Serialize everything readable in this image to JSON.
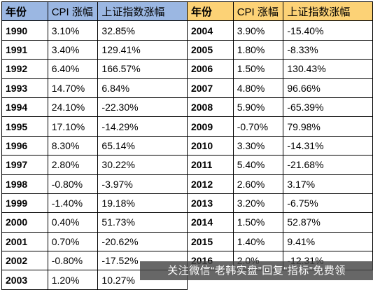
{
  "headers": {
    "left": [
      "年份",
      "CPI 涨幅",
      "上证指数涨幅"
    ],
    "right": [
      "年份",
      "CPI 涨幅",
      "上证指数涨幅"
    ]
  },
  "left_rows": [
    [
      "1990",
      "3.10%",
      "32.85%"
    ],
    [
      "1991",
      "3.40%",
      "129.41%"
    ],
    [
      "1992",
      "6.40%",
      "166.57%"
    ],
    [
      "1993",
      "14.70%",
      "6.84%"
    ],
    [
      "1994",
      "24.10%",
      "-22.30%"
    ],
    [
      "1995",
      "17.10%",
      "-14.29%"
    ],
    [
      "1996",
      "8.30%",
      "65.14%"
    ],
    [
      "1997",
      "2.80%",
      "30.22%"
    ],
    [
      "1998",
      "-0.80%",
      "-3.97%"
    ],
    [
      "1999",
      "-1.40%",
      "19.18%"
    ],
    [
      "2000",
      "0.40%",
      "51.73%"
    ],
    [
      "2001",
      "0.70%",
      "-20.62%"
    ],
    [
      "2002",
      "-0.80%",
      "-17.52%"
    ],
    [
      "2003",
      "1.20%",
      "10.27%"
    ]
  ],
  "right_rows": [
    [
      "2004",
      "3.90%",
      "-15.40%"
    ],
    [
      "2005",
      "1.80%",
      "-8.33%"
    ],
    [
      "2006",
      "1.50%",
      "130.43%"
    ],
    [
      "2007",
      "4.80%",
      "96.66%"
    ],
    [
      "2008",
      "5.90%",
      "-65.39%"
    ],
    [
      "2009",
      "-0.70%",
      "79.98%"
    ],
    [
      "2010",
      "3.30%",
      "-14.31%"
    ],
    [
      "2011",
      "5.40%",
      "-21.68%"
    ],
    [
      "2012",
      "2.60%",
      "3.17%"
    ],
    [
      "2013",
      "3.20%",
      "-6.75%"
    ],
    [
      "2014",
      "1.50%",
      "52.87%"
    ],
    [
      "2015",
      "1.40%",
      "9.41%"
    ],
    [
      "2016",
      "2.0%",
      "-12.31%"
    ]
  ],
  "watermark": "关注微信“老韩实盘”回复“指标”免费领",
  "colors": {
    "left_header": "#9bb7e2",
    "right_header": "#fcd276"
  }
}
